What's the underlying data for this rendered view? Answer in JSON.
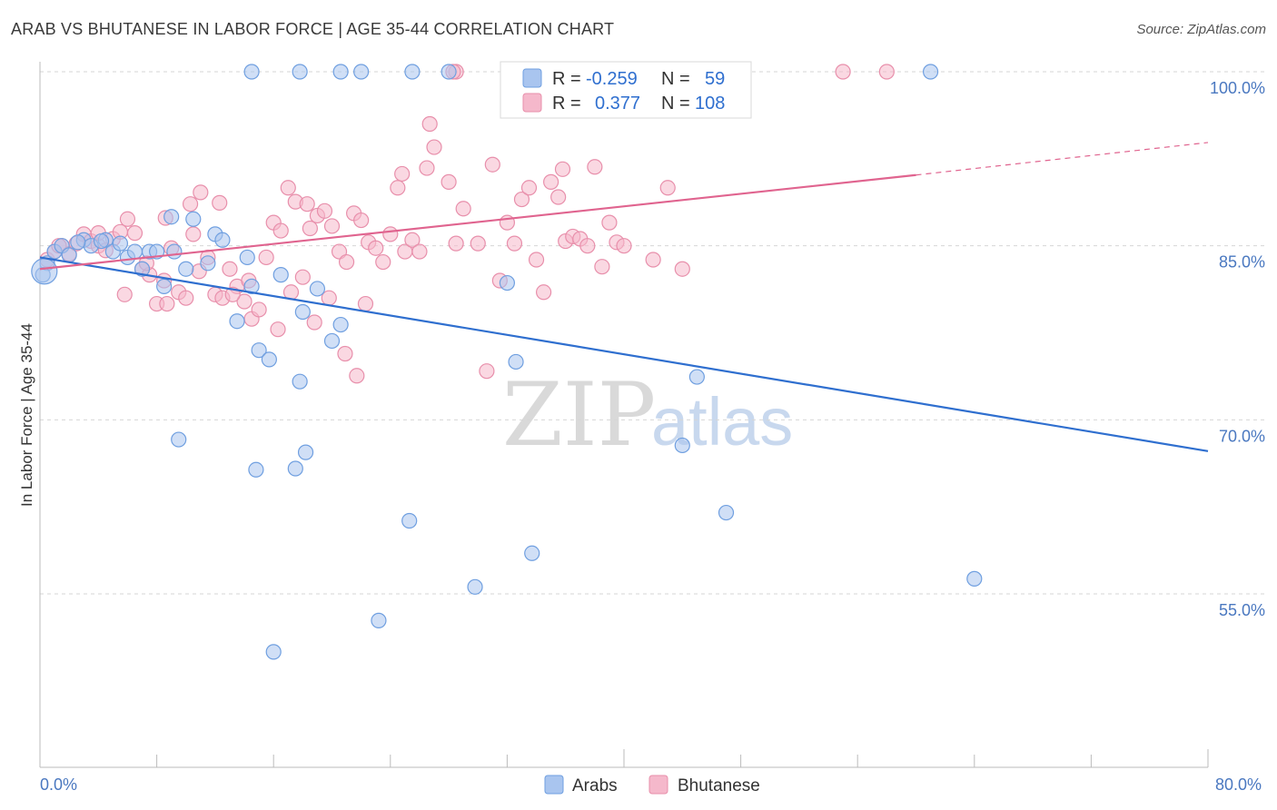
{
  "header": {
    "title": "ARAB VS BHUTANESE IN LABOR FORCE | AGE 35-44 CORRELATION CHART",
    "source": "Source: ZipAtlas.com"
  },
  "legend_box": {
    "rows": [
      {
        "r_label": "R =",
        "r_value": "-0.259",
        "n_label": "N =",
        "n_value": "59"
      },
      {
        "r_label": "R =",
        "r_value": "0.377",
        "n_label": "N =",
        "n_value": "108"
      }
    ]
  },
  "bottom_legend": {
    "items": [
      {
        "label": "Arabs"
      },
      {
        "label": "Bhutanese"
      }
    ]
  },
  "watermark": {
    "zip": "ZIP",
    "atlas": "atlas"
  },
  "colors": {
    "arabs_fill": "#a9c5ef",
    "arabs_stroke": "#6f9fe0",
    "arabs_line": "#2f6fcf",
    "bhutanese_fill": "#f5b8cb",
    "bhutanese_stroke": "#e88fab",
    "bhutanese_line": "#e0648f",
    "grid": "#d6d6d6",
    "axis_label": "#4a78c0"
  },
  "chart_data": {
    "type": "scatter",
    "title": "ARAB VS BHUTANESE IN LABOR FORCE | AGE 35-44 CORRELATION CHART",
    "xlabel": "",
    "ylabel": "In Labor Force | Age 35-44",
    "xlim": [
      0,
      80
    ],
    "ylim": [
      41,
      105
    ],
    "x_tick_labels": [
      "0.0%",
      "80.0%"
    ],
    "y_ticks": [
      55,
      70,
      85,
      100
    ],
    "y_tick_labels": [
      "55.0%",
      "70.0%",
      "85.0%",
      "100.0%"
    ],
    "grid": "horizontal dashed",
    "legend_position": "top-center",
    "series": [
      {
        "name": "Arabs",
        "r": -0.259,
        "n": 59,
        "trend": {
          "x": [
            0,
            80
          ],
          "y": [
            84.0,
            67.3
          ]
        },
        "points": [
          [
            0.5,
            83.5
          ],
          [
            1.0,
            84.5
          ],
          [
            1.5,
            85.0
          ],
          [
            2.0,
            84.2
          ],
          [
            3.0,
            85.5
          ],
          [
            3.5,
            85.0
          ],
          [
            4.5,
            85.5
          ],
          [
            5.0,
            84.5
          ],
          [
            6.0,
            84.0
          ],
          [
            6.5,
            84.5
          ],
          [
            7.0,
            83.0
          ],
          [
            7.5,
            84.5
          ],
          [
            8.0,
            84.5
          ],
          [
            8.5,
            81.5
          ],
          [
            9.0,
            87.5
          ],
          [
            9.2,
            84.5
          ],
          [
            10.0,
            83.0
          ],
          [
            10.5,
            87.3
          ],
          [
            11.5,
            83.5
          ],
          [
            12.0,
            86.0
          ],
          [
            12.5,
            85.5
          ],
          [
            13.5,
            78.5
          ],
          [
            14.5,
            81.5
          ],
          [
            15.0,
            76.0
          ],
          [
            15.7,
            75.2
          ],
          [
            16.5,
            82.5
          ],
          [
            17.8,
            73.3
          ],
          [
            18.0,
            79.3
          ],
          [
            19.0,
            81.3
          ],
          [
            20.0,
            76.8
          ],
          [
            20.6,
            78.2
          ],
          [
            14.2,
            84.0
          ],
          [
            9.5,
            68.3
          ],
          [
            14.8,
            65.7
          ],
          [
            17.5,
            65.8
          ],
          [
            18.2,
            67.2
          ],
          [
            16.0,
            50.0
          ],
          [
            23.2,
            52.7
          ],
          [
            25.3,
            61.3
          ],
          [
            29.8,
            55.6
          ],
          [
            33.7,
            58.5
          ],
          [
            32.6,
            75.0
          ],
          [
            32.0,
            81.8
          ],
          [
            45.0,
            73.7
          ],
          [
            44.0,
            67.8
          ],
          [
            47.0,
            62.0
          ],
          [
            64.0,
            56.3
          ],
          [
            14.5,
            100.0
          ],
          [
            17.8,
            100.0
          ],
          [
            20.6,
            100.0
          ],
          [
            22.0,
            100.0
          ],
          [
            25.5,
            100.0
          ],
          [
            28.0,
            100.0
          ],
          [
            47.6,
            100.0
          ],
          [
            61.0,
            100.0
          ],
          [
            2.6,
            85.3
          ],
          [
            5.5,
            85.2
          ],
          [
            4.2,
            85.4
          ],
          [
            0.2,
            82.5
          ]
        ]
      },
      {
        "name": "Bhutanese",
        "r": 0.377,
        "n": 108,
        "trend": {
          "x": [
            0,
            60
          ],
          "y": [
            83.0,
            91.1
          ]
        },
        "trend_dashed": {
          "x": [
            60,
            80
          ],
          "y": [
            91.1,
            93.9
          ]
        },
        "points": [
          [
            0.5,
            83.8
          ],
          [
            1.0,
            84.5
          ],
          [
            1.5,
            85.0
          ],
          [
            2.0,
            84.3
          ],
          [
            2.5,
            85.2
          ],
          [
            3.0,
            86.0
          ],
          [
            3.5,
            85.4
          ],
          [
            4.0,
            85.0
          ],
          [
            4.5,
            84.6
          ],
          [
            5.0,
            85.6
          ],
          [
            5.5,
            86.2
          ],
          [
            6.0,
            87.3
          ],
          [
            6.5,
            86.1
          ],
          [
            7.0,
            83.0
          ],
          [
            7.5,
            82.5
          ],
          [
            8.0,
            80.0
          ],
          [
            8.5,
            82.0
          ],
          [
            9.0,
            84.8
          ],
          [
            9.5,
            81.0
          ],
          [
            10.0,
            80.5
          ],
          [
            10.5,
            86.0
          ],
          [
            11.0,
            89.6
          ],
          [
            11.5,
            84.0
          ],
          [
            12.0,
            80.8
          ],
          [
            12.5,
            80.5
          ],
          [
            13.0,
            83.0
          ],
          [
            13.5,
            81.5
          ],
          [
            14.0,
            80.2
          ],
          [
            14.5,
            78.7
          ],
          [
            15.0,
            79.5
          ],
          [
            15.5,
            84.0
          ],
          [
            16.0,
            87.0
          ],
          [
            16.5,
            86.3
          ],
          [
            17.0,
            90.0
          ],
          [
            17.5,
            88.8
          ],
          [
            18.0,
            82.3
          ],
          [
            18.5,
            86.5
          ],
          [
            19.0,
            87.6
          ],
          [
            19.5,
            88.0
          ],
          [
            20.0,
            86.7
          ],
          [
            20.5,
            84.5
          ],
          [
            21.0,
            83.6
          ],
          [
            21.5,
            87.8
          ],
          [
            22.0,
            87.2
          ],
          [
            22.5,
            85.3
          ],
          [
            23.0,
            84.8
          ],
          [
            23.5,
            83.6
          ],
          [
            24.0,
            86.0
          ],
          [
            24.5,
            90.0
          ],
          [
            25.0,
            84.5
          ],
          [
            25.5,
            85.5
          ],
          [
            26.0,
            84.5
          ],
          [
            27.0,
            93.5
          ],
          [
            28.0,
            90.5
          ],
          [
            28.5,
            85.2
          ],
          [
            29.0,
            88.2
          ],
          [
            30.0,
            85.2
          ],
          [
            31.0,
            92.0
          ],
          [
            31.5,
            82.0
          ],
          [
            32.0,
            87.0
          ],
          [
            32.5,
            85.2
          ],
          [
            33.0,
            89.0
          ],
          [
            33.5,
            90.0
          ],
          [
            34.0,
            83.8
          ],
          [
            34.5,
            81.0
          ],
          [
            35.0,
            90.5
          ],
          [
            35.5,
            89.2
          ],
          [
            36.0,
            85.4
          ],
          [
            36.5,
            85.8
          ],
          [
            37.0,
            85.6
          ],
          [
            37.5,
            85.0
          ],
          [
            38.0,
            91.8
          ],
          [
            38.5,
            83.2
          ],
          [
            39.0,
            87.0
          ],
          [
            39.5,
            85.3
          ],
          [
            40.0,
            85.0
          ],
          [
            42.0,
            83.8
          ],
          [
            43.0,
            90.0
          ],
          [
            44.0,
            83.0
          ],
          [
            10.3,
            88.6
          ],
          [
            5.8,
            80.8
          ],
          [
            7.3,
            83.5
          ],
          [
            8.7,
            80.0
          ],
          [
            10.9,
            82.8
          ],
          [
            12.3,
            88.7
          ],
          [
            13.2,
            80.8
          ],
          [
            14.3,
            82.0
          ],
          [
            16.3,
            77.8
          ],
          [
            17.2,
            81.0
          ],
          [
            18.8,
            78.4
          ],
          [
            19.8,
            80.5
          ],
          [
            20.9,
            75.7
          ],
          [
            21.7,
            73.8
          ],
          [
            22.3,
            80.0
          ],
          [
            24.8,
            91.2
          ],
          [
            26.5,
            91.7
          ],
          [
            30.6,
            74.2
          ],
          [
            35.8,
            91.6
          ],
          [
            18.3,
            88.6
          ],
          [
            8.6,
            87.4
          ],
          [
            26.7,
            95.5
          ],
          [
            28.5,
            100.0
          ],
          [
            28.3,
            100.0
          ],
          [
            33.0,
            100.0
          ],
          [
            55.0,
            100.0
          ],
          [
            58.0,
            100.0
          ],
          [
            1.3,
            85.0
          ],
          [
            4.0,
            86.1
          ]
        ]
      }
    ]
  }
}
